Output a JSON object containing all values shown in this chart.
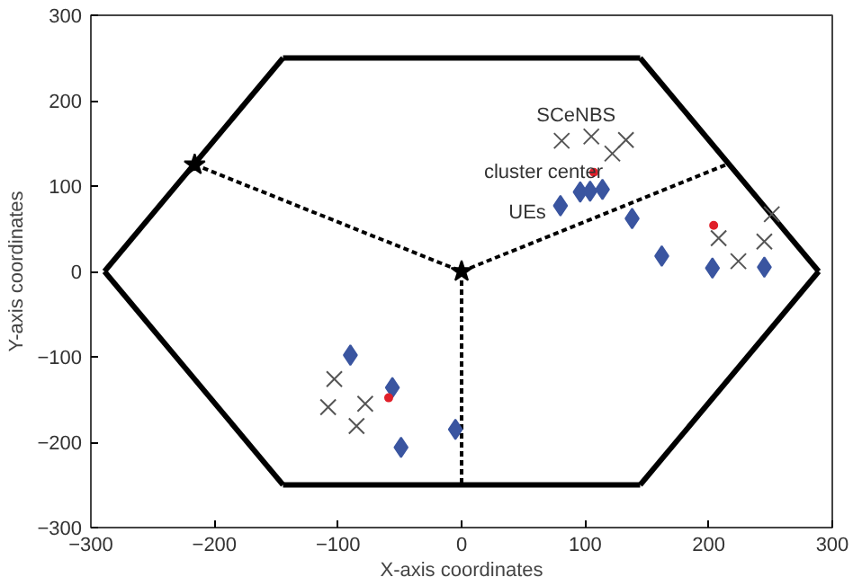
{
  "chart_data": {
    "type": "scatter",
    "xlabel": "X-axis coordinates",
    "ylabel": "Y-axis coordinates",
    "xlim": [
      -300,
      300
    ],
    "ylim": [
      -300,
      300
    ],
    "xticks": [
      -300,
      -200,
      -100,
      0,
      100,
      200,
      300
    ],
    "yticks": [
      -300,
      -200,
      -100,
      0,
      100,
      200,
      300
    ],
    "grid": false,
    "series": [
      {
        "type": "line",
        "color": "#000000",
        "line_style": "solid",
        "x": [
          -289,
          -144.5
        ],
        "values": [
          0,
          250
        ]
      },
      {
        "type": "line",
        "color": "#000000",
        "line_style": "solid",
        "x": [
          -144.5,
          144.5
        ],
        "values": [
          250,
          250
        ]
      },
      {
        "type": "line",
        "color": "#000000",
        "line_style": "solid",
        "x": [
          144.5,
          289
        ],
        "values": [
          250,
          0
        ]
      },
      {
        "type": "line",
        "color": "#000000",
        "line_style": "solid",
        "x": [
          289,
          144.5
        ],
        "values": [
          0,
          -250
        ]
      },
      {
        "type": "line",
        "color": "#000000",
        "line_style": "solid",
        "x": [
          144.5,
          -144.5
        ],
        "values": [
          -250,
          -250
        ]
      },
      {
        "type": "line",
        "color": "#000000",
        "line_style": "solid",
        "x": [
          -144.5,
          -289
        ],
        "values": [
          -250,
          0
        ]
      },
      {
        "type": "line",
        "color": "#000000",
        "line_style": "dashed",
        "x": [
          -216,
          0
        ],
        "values": [
          125,
          0
        ]
      },
      {
        "type": "line",
        "color": "#000000",
        "line_style": "dashed",
        "x": [
          0,
          214
        ],
        "values": [
          0,
          125
        ]
      },
      {
        "type": "line",
        "color": "#000000",
        "line_style": "dashed",
        "x": [
          0,
          0
        ],
        "values": [
          0,
          -250
        ]
      },
      {
        "color": "#000000",
        "marker": "star",
        "x": [
          0,
          -216
        ],
        "values": [
          0,
          125
        ]
      },
      {
        "name": "UEs",
        "color": "#3a55a0",
        "marker": "diamond",
        "x": [
          80,
          96,
          104,
          114,
          138,
          162,
          203,
          245,
          -90,
          -56,
          -5,
          -49
        ],
        "values": [
          77,
          93,
          94,
          96,
          62,
          18,
          4,
          5,
          -98,
          -136,
          -185,
          -206
        ]
      },
      {
        "name": "SCeNBS",
        "color": "#555555",
        "marker": "cross",
        "x": [
          81,
          105,
          122,
          133,
          208,
          224,
          245,
          251,
          -103,
          -108,
          -78,
          -85
        ],
        "values": [
          153,
          158,
          138,
          154,
          39,
          12,
          35,
          67,
          -126,
          -159,
          -155,
          -181
        ]
      },
      {
        "name": "cluster center",
        "color": "#e0202a",
        "marker": "circle",
        "x": [
          107,
          204,
          -59
        ],
        "values": [
          116,
          54,
          -148
        ]
      }
    ]
  }
}
